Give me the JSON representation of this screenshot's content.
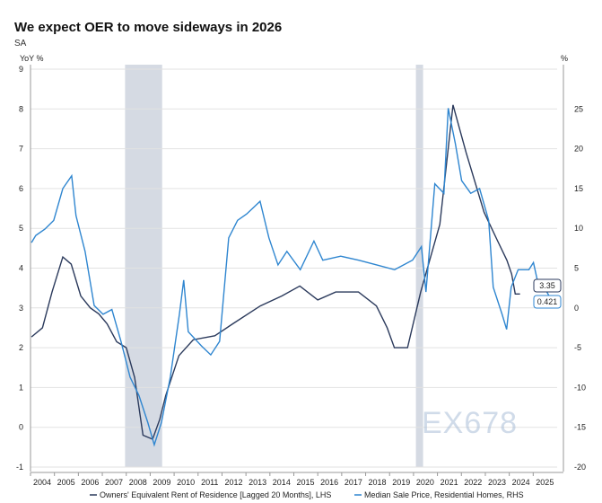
{
  "title": "We expect OER to move sideways in 2026",
  "subtitle": "SA",
  "watermark": "EX678",
  "chart_data": {
    "type": "line",
    "title": "We expect OER to move sideways in 2026",
    "ylabel_left": "YoY %",
    "ylabel_right": "%",
    "ylim_left": [
      -1,
      9
    ],
    "ylim_right": [
      -20,
      30
    ],
    "xlim": [
      2004,
      2026
    ],
    "yticks_left": [
      "9",
      "8",
      "7",
      "6",
      "5",
      "4",
      "3",
      "2",
      "1",
      "0",
      "-1"
    ],
    "yticks_right": [
      "25",
      "20",
      "15",
      "10",
      "5",
      "0",
      "-5",
      "-10",
      "-15",
      "-20"
    ],
    "xticks": [
      "2004",
      "2005",
      "2006",
      "2007",
      "2008",
      "2009",
      "2010",
      "2011",
      "2012",
      "2013",
      "2014",
      "2015",
      "2016",
      "2017",
      "2018",
      "2019",
      "2020",
      "2021",
      "2022",
      "2023",
      "2024",
      "2025"
    ],
    "recessions": [
      [
        2007.95,
        2009.5
      ],
      [
        2020.1,
        2020.4
      ]
    ],
    "grid": true,
    "legend": "bottom",
    "series": [
      {
        "name": "Owners' Equivalent Rent of Residence [Lagged 20 Months], LHS",
        "axis": "left",
        "color": "#2b3a5c",
        "last_label": "3.35",
        "points": [
          [
            2004.04,
            2.27
          ],
          [
            2004.5,
            2.5
          ],
          [
            2004.9,
            3.4
          ],
          [
            2005.35,
            4.28
          ],
          [
            2005.7,
            4.1
          ],
          [
            2006.1,
            3.3
          ],
          [
            2006.5,
            3.0
          ],
          [
            2006.85,
            2.85
          ],
          [
            2007.2,
            2.6
          ],
          [
            2007.6,
            2.15
          ],
          [
            2008.0,
            2.0
          ],
          [
            2008.35,
            1.25
          ],
          [
            2008.7,
            -0.2
          ],
          [
            2009.1,
            -0.3
          ],
          [
            2009.4,
            0.2
          ],
          [
            2009.65,
            0.8
          ],
          [
            2010.2,
            1.8
          ],
          [
            2010.8,
            2.2
          ],
          [
            2011.7,
            2.3
          ],
          [
            2012.45,
            2.6
          ],
          [
            2013.6,
            3.05
          ],
          [
            2014.5,
            3.3
          ],
          [
            2015.25,
            3.55
          ],
          [
            2016.0,
            3.2
          ],
          [
            2016.75,
            3.4
          ],
          [
            2017.7,
            3.4
          ],
          [
            2018.45,
            3.05
          ],
          [
            2018.9,
            2.5
          ],
          [
            2019.2,
            2.0
          ],
          [
            2019.75,
            2.0
          ],
          [
            2020.3,
            3.4
          ],
          [
            2021.1,
            5.1
          ],
          [
            2021.65,
            8.1
          ],
          [
            2022.2,
            6.9
          ],
          [
            2022.95,
            5.4
          ],
          [
            2023.5,
            4.7
          ],
          [
            2023.9,
            4.2
          ],
          [
            2024.1,
            3.85
          ],
          [
            2024.25,
            3.35
          ],
          [
            2024.45,
            3.35
          ]
        ]
      },
      {
        "name": "Median Sale Price, Residential Homes, RHS",
        "axis": "right",
        "color": "#2f86d0",
        "last_label": "0.421",
        "points": [
          [
            2004.04,
            8.2
          ],
          [
            2004.22,
            9.1
          ],
          [
            2004.6,
            9.9
          ],
          [
            2004.97,
            11
          ],
          [
            2005.35,
            15
          ],
          [
            2005.72,
            16.6
          ],
          [
            2005.9,
            11.6
          ],
          [
            2006.28,
            7.1
          ],
          [
            2006.66,
            0.3
          ],
          [
            2007.03,
            -0.8
          ],
          [
            2007.4,
            -0.2
          ],
          [
            2007.78,
            -4.2
          ],
          [
            2008.16,
            -8.7
          ],
          [
            2008.53,
            -11
          ],
          [
            2008.9,
            -14.4
          ],
          [
            2009.17,
            -17.2
          ],
          [
            2009.47,
            -14.4
          ],
          [
            2009.84,
            -8.7
          ],
          [
            2010.22,
            -0.8
          ],
          [
            2010.4,
            3.5
          ],
          [
            2010.59,
            -3
          ],
          [
            2011.15,
            -4.8
          ],
          [
            2011.53,
            -5.9
          ],
          [
            2011.9,
            -4.2
          ],
          [
            2012.28,
            8.8
          ],
          [
            2012.65,
            11
          ],
          [
            2013.03,
            11.8
          ],
          [
            2013.59,
            13.4
          ],
          [
            2013.96,
            8.8
          ],
          [
            2014.34,
            5.4
          ],
          [
            2014.71,
            7.1
          ],
          [
            2015.27,
            4.8
          ],
          [
            2015.84,
            8.4
          ],
          [
            2016.21,
            6
          ],
          [
            2016.96,
            6.5
          ],
          [
            2017.71,
            6
          ],
          [
            2018.46,
            5.4
          ],
          [
            2019.21,
            4.8
          ],
          [
            2019.96,
            6
          ],
          [
            2020.33,
            7.7
          ],
          [
            2020.52,
            2
          ],
          [
            2020.89,
            15.6
          ],
          [
            2021.27,
            14.4
          ],
          [
            2021.45,
            25.1
          ],
          [
            2021.75,
            20.6
          ],
          [
            2022.01,
            16
          ],
          [
            2022.39,
            14.4
          ],
          [
            2022.76,
            15
          ],
          [
            2023.14,
            11
          ],
          [
            2023.33,
            2.6
          ],
          [
            2023.7,
            -0.8
          ],
          [
            2023.89,
            -2.7
          ],
          [
            2024.08,
            2.6
          ],
          [
            2024.37,
            4.8
          ],
          [
            2024.82,
            4.8
          ],
          [
            2025.01,
            5.7
          ],
          [
            2025.2,
            3.1
          ],
          [
            2025.57,
            2
          ],
          [
            2025.87,
            0.421
          ]
        ]
      }
    ]
  }
}
